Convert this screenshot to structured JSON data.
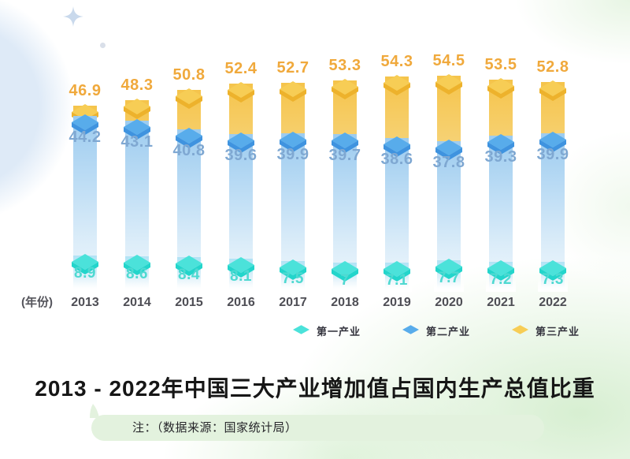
{
  "chart_data": {
    "type": "bar",
    "variant": "overlaid-3d-columns",
    "title": "2013 - 2022年中国三大产业增加值占国内生产总值比重",
    "xlabel": "(年份)",
    "note": "注：（数据来源：国家统计局）",
    "categories": [
      "2013",
      "2014",
      "2015",
      "2016",
      "2017",
      "2018",
      "2019",
      "2020",
      "2021",
      "2022"
    ],
    "series": [
      {
        "name": "第一产业",
        "values": [
          8.9,
          8.6,
          8.4,
          8.1,
          7.5,
          7,
          7.1,
          7.7,
          7.2,
          7.3
        ],
        "cap_top_color": "#4BE2DA",
        "cap_side_color": "#23D5CB",
        "label_color": "#4FD9D1"
      },
      {
        "name": "第二产业",
        "values": [
          44.2,
          43.1,
          40.8,
          39.6,
          39.9,
          39.7,
          38.6,
          37.8,
          39.3,
          39.9
        ],
        "cap_top_color": "#58ACEB",
        "cap_side_color": "#3F93DF",
        "label_color": "#7FA8D2"
      },
      {
        "name": "第三产业",
        "values": [
          46.9,
          48.3,
          50.8,
          52.4,
          52.7,
          53.3,
          54.3,
          54.5,
          53.5,
          52.8
        ],
        "cap_top_color": "#F7CD55",
        "cap_side_color": "#EDB22C",
        "label_color": "#F0A93C"
      }
    ],
    "legend_position": "bottom",
    "axes_hidden": true,
    "ylim": [
      0,
      55
    ]
  }
}
